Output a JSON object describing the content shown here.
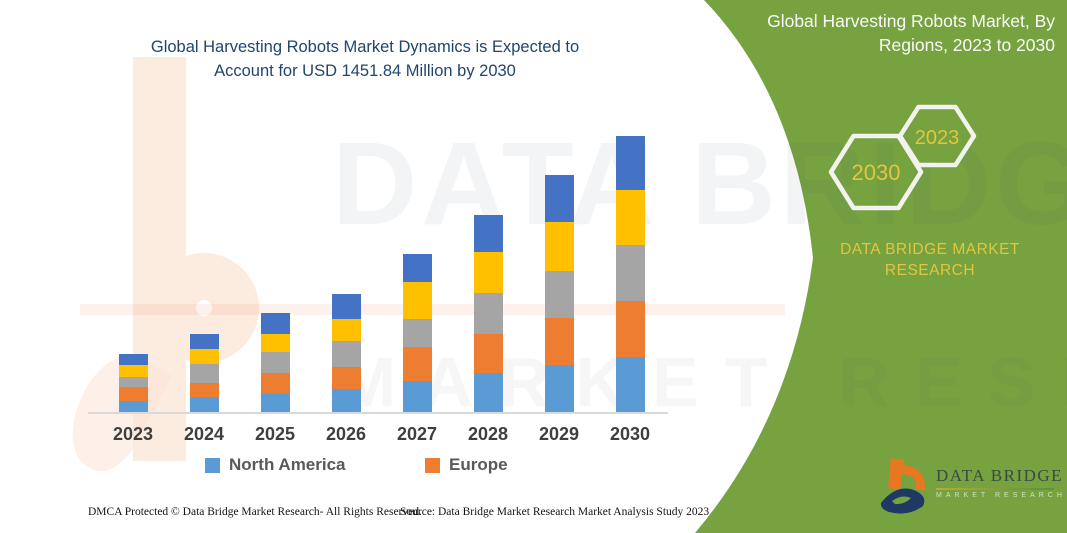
{
  "header": {
    "chart_title_line1": "Global Harvesting Robots Market Dynamics is Expected to",
    "chart_title_line2": "Account for USD 1451.84 Million by 2030"
  },
  "chart_data": {
    "type": "bar",
    "stacked": true,
    "units": "USD Million (estimated from bar heights; 2030 total = 1451.84 per title)",
    "categories": [
      "2023",
      "2024",
      "2025",
      "2026",
      "2027",
      "2028",
      "2029",
      "2030"
    ],
    "series": [
      {
        "name": "North America",
        "color": "#5B9BD5",
        "values": [
          58,
          81,
          95,
          119,
          161,
          206,
          245,
          289
        ]
      },
      {
        "name": "Europe",
        "color": "#ED7D31",
        "values": [
          73,
          73,
          110,
          119,
          180,
          205,
          250,
          294
        ]
      },
      {
        "name": "unlabeled-gray",
        "color": "#A5A5A5",
        "values": [
          55,
          101,
          110,
          134,
          149,
          214,
          248,
          296
        ]
      },
      {
        "name": "unlabeled-yellow",
        "color": "#FFC000",
        "values": [
          59,
          77,
          95,
          118,
          193,
          219,
          254,
          289
        ]
      },
      {
        "name": "unlabeled-dark-blue",
        "color": "#4472C4",
        "values": [
          61,
          77,
          111,
          129,
          149,
          194,
          248,
          283.84
        ]
      }
    ],
    "totals": [
      306,
      409,
      521,
      619,
      832,
      1038,
      1245,
      1451.84
    ],
    "legend_visible": [
      "North America",
      "Europe"
    ],
    "legend_position": "bottom",
    "xlabel": "",
    "ylabel": "",
    "value_axis_shown": false,
    "grid": false
  },
  "legend": {
    "item1": "North America",
    "item2": "Europe"
  },
  "side_panel": {
    "title_line1": "Global Harvesting Robots Market, By",
    "title_line2": "Regions, 2023 to 2030",
    "hexagon_back_label": "2030",
    "hexagon_front_label": "2023",
    "caption_line1": "DATA BRIDGE MARKET",
    "caption_line2": "RESEARCH",
    "colors": {
      "panel_green": "#76A23F",
      "accent_yellow": "#E2C63F",
      "hexagon_stroke": "#F2F3EE"
    }
  },
  "logo": {
    "wordmark": "DATA BRIDGE",
    "subtext": "MARKET RESEARCH",
    "glyph": "data-bridge-b-icon",
    "colors": {
      "orange": "#E87722",
      "navy": "#1F3864"
    }
  },
  "watermark": {
    "line1": "DATA BRIDGE",
    "line2": "MARKET RESEARCH"
  },
  "footer": {
    "left": "DMCA Protected © Data Bridge Market Research-  All Rights Reserved.",
    "source": "Source: Data Bridge Market Research  Market Analysis Study 2023"
  }
}
